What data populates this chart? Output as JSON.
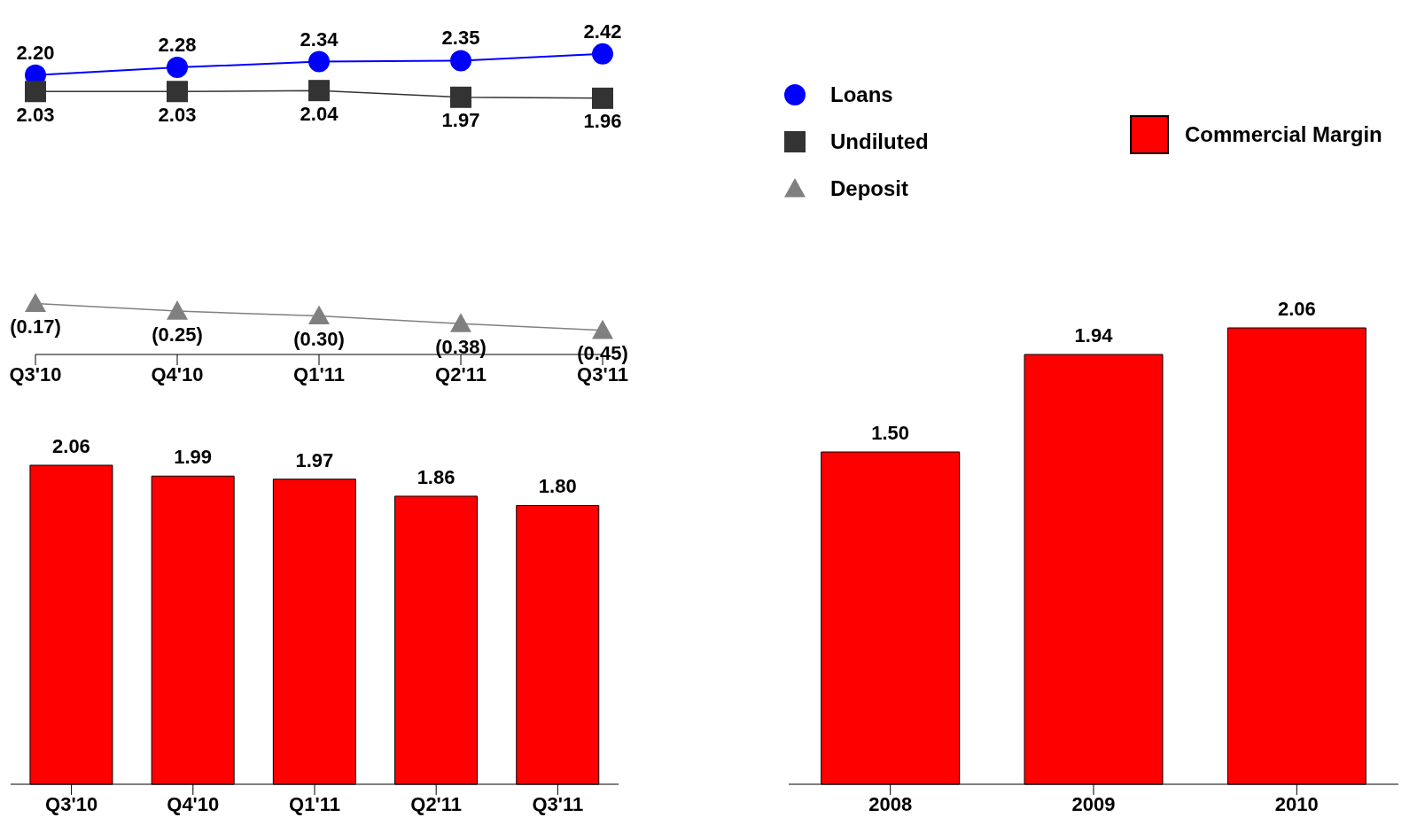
{
  "chart_data": [
    {
      "type": "line",
      "categories": [
        "Q3'10",
        "Q4'10",
        "Q1'11",
        "Q2'11",
        "Q3'11"
      ],
      "legend": "right",
      "line_style": "solid",
      "series": [
        {
          "name": "Loans",
          "color": "#0000ff",
          "marker": "circle",
          "values": [
            2.2,
            2.28,
            2.34,
            2.35,
            2.42
          ],
          "value_labels": [
            "2.20",
            "2.28",
            "2.34",
            "2.35",
            "2.42"
          ]
        },
        {
          "name": "Undiluted",
          "color": "#333333",
          "marker": "square",
          "values": [
            2.03,
            2.03,
            2.04,
            1.97,
            1.96
          ],
          "value_labels": [
            "2.03",
            "2.03",
            "2.04",
            "1.97",
            "1.96"
          ]
        },
        {
          "name": "Deposit",
          "color": "#808080",
          "marker": "triangle",
          "values": [
            -0.17,
            -0.25,
            -0.3,
            -0.38,
            -0.45
          ],
          "value_labels": [
            "(0.17)",
            "(0.25)",
            "(0.30)",
            "(0.38)",
            "(0.45)"
          ]
        }
      ]
    },
    {
      "type": "bar",
      "categories": [
        "Q3'10",
        "Q4'10",
        "Q1'11",
        "Q2'11",
        "Q3'11"
      ],
      "color": "#ff0000",
      "values": [
        2.06,
        1.99,
        1.97,
        1.86,
        1.8
      ],
      "value_labels": [
        "2.06",
        "1.99",
        "1.97",
        "1.86",
        "1.80"
      ]
    },
    {
      "type": "bar",
      "categories": [
        "2008",
        "2009",
        "2010"
      ],
      "legend": "top right",
      "series": [
        {
          "name": "Commercial Margin",
          "color": "#ff0000",
          "values": [
            1.5,
            1.94,
            2.06
          ],
          "value_labels": [
            "1.50",
            "1.94",
            "2.06"
          ]
        }
      ]
    }
  ]
}
